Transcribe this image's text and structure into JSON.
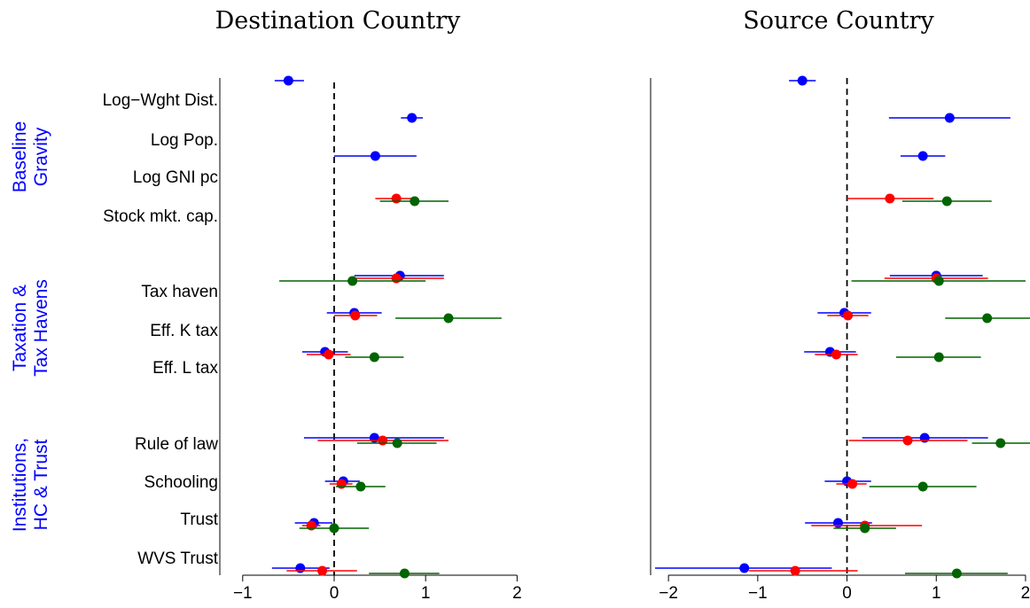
{
  "colors": {
    "blue": "#0000ff",
    "red": "#ff0000",
    "green": "#006400"
  },
  "row_labels": [
    "Log−Wght Dist.",
    "Log Pop.",
    "Log GNI pc",
    "Stock mkt. cap.",
    "Tax haven",
    "Eff. K tax",
    "Eff. L tax",
    "Rule of law",
    "Schooling",
    "Trust",
    "WVS Trust"
  ],
  "groups": [
    {
      "lines": [
        "Baseline",
        "Gravity"
      ]
    },
    {
      "lines": [
        "Taxation &",
        "Tax Havens"
      ]
    },
    {
      "lines": [
        "Institutions,",
        "HC & Trust"
      ]
    }
  ],
  "chart_data": [
    {
      "type": "scatter",
      "title": "Destination Country",
      "xlim": [
        -1.25,
        2.2
      ],
      "xticks": [
        -1,
        0,
        1,
        2
      ],
      "xtick_labels": [
        "−1",
        "0",
        "1",
        "2"
      ],
      "reference_line": 0,
      "grid": false,
      "points": [
        {
          "row": 0,
          "color": "blue",
          "est": -0.5,
          "lo": -0.65,
          "hi": -0.33
        },
        {
          "row": 1,
          "color": "blue",
          "est": 0.85,
          "lo": 0.73,
          "hi": 0.97
        },
        {
          "row": 2,
          "color": "blue",
          "est": 0.45,
          "lo": 0.0,
          "hi": 0.9
        },
        {
          "row": 3,
          "color": "red",
          "est": 0.68,
          "lo": 0.45,
          "hi": 0.92
        },
        {
          "row": 3,
          "color": "green",
          "est": 0.88,
          "lo": 0.5,
          "hi": 1.25
        },
        {
          "row": 4,
          "color": "blue",
          "est": 0.72,
          "lo": 0.22,
          "hi": 1.2
        },
        {
          "row": 4,
          "color": "red",
          "est": 0.68,
          "lo": 0.16,
          "hi": 1.2
        },
        {
          "row": 4,
          "color": "green",
          "est": 0.2,
          "lo": -0.6,
          "hi": 1.0
        },
        {
          "row": 5,
          "color": "blue",
          "est": 0.22,
          "lo": -0.08,
          "hi": 0.52
        },
        {
          "row": 5,
          "color": "red",
          "est": 0.23,
          "lo": 0.0,
          "hi": 0.47
        },
        {
          "row": 5,
          "color": "green",
          "est": 1.25,
          "lo": 0.67,
          "hi": 1.83
        },
        {
          "row": 6,
          "color": "blue",
          "est": -0.1,
          "lo": -0.35,
          "hi": 0.15
        },
        {
          "row": 6,
          "color": "red",
          "est": -0.06,
          "lo": -0.3,
          "hi": 0.18
        },
        {
          "row": 6,
          "color": "green",
          "est": 0.44,
          "lo": 0.12,
          "hi": 0.76
        },
        {
          "row": 7,
          "color": "blue",
          "est": 0.44,
          "lo": -0.33,
          "hi": 1.2
        },
        {
          "row": 7,
          "color": "red",
          "est": 0.53,
          "lo": -0.18,
          "hi": 1.25
        },
        {
          "row": 7,
          "color": "green",
          "est": 0.69,
          "lo": 0.25,
          "hi": 1.12
        },
        {
          "row": 8,
          "color": "blue",
          "est": 0.1,
          "lo": -0.1,
          "hi": 0.28
        },
        {
          "row": 8,
          "color": "red",
          "est": 0.08,
          "lo": -0.05,
          "hi": 0.2
        },
        {
          "row": 8,
          "color": "green",
          "est": 0.29,
          "lo": 0.02,
          "hi": 0.56
        },
        {
          "row": 9,
          "color": "blue",
          "est": -0.22,
          "lo": -0.43,
          "hi": -0.02
        },
        {
          "row": 9,
          "color": "red",
          "est": -0.25,
          "lo": -0.35,
          "hi": -0.15
        },
        {
          "row": 9,
          "color": "green",
          "est": 0.0,
          "lo": -0.38,
          "hi": 0.38
        },
        {
          "row": 10,
          "color": "blue",
          "est": -0.37,
          "lo": -0.68,
          "hi": -0.05
        },
        {
          "row": 10,
          "color": "red",
          "est": -0.13,
          "lo": -0.52,
          "hi": 0.25
        },
        {
          "row": 10,
          "color": "green",
          "est": 0.77,
          "lo": 0.38,
          "hi": 1.15
        }
      ]
    },
    {
      "type": "scatter",
      "title": "Source Country",
      "xlim": [
        -2.2,
        2.05
      ],
      "xticks": [
        -2,
        -1,
        0,
        1,
        2
      ],
      "xtick_labels": [
        "−2",
        "−1",
        "0",
        "1",
        "2"
      ],
      "reference_line": 0,
      "grid": false,
      "points": [
        {
          "row": 0,
          "color": "blue",
          "est": -0.5,
          "lo": -0.65,
          "hi": -0.35
        },
        {
          "row": 1,
          "color": "blue",
          "est": 1.15,
          "lo": 0.47,
          "hi": 1.83
        },
        {
          "row": 2,
          "color": "blue",
          "est": 0.85,
          "lo": 0.6,
          "hi": 1.1
        },
        {
          "row": 3,
          "color": "red",
          "est": 0.48,
          "lo": 0.0,
          "hi": 0.97
        },
        {
          "row": 3,
          "color": "green",
          "est": 1.12,
          "lo": 0.62,
          "hi": 1.62
        },
        {
          "row": 4,
          "color": "blue",
          "est": 1.0,
          "lo": 0.48,
          "hi": 1.52
        },
        {
          "row": 4,
          "color": "red",
          "est": 1.0,
          "lo": 0.42,
          "hi": 1.58
        },
        {
          "row": 4,
          "color": "green",
          "est": 1.03,
          "lo": 0.05,
          "hi": 2.0
        },
        {
          "row": 5,
          "color": "blue",
          "est": -0.03,
          "lo": -0.33,
          "hi": 0.27
        },
        {
          "row": 5,
          "color": "red",
          "est": 0.01,
          "lo": -0.22,
          "hi": 0.24
        },
        {
          "row": 5,
          "color": "green",
          "est": 1.57,
          "lo": 1.1,
          "hi": 2.05
        },
        {
          "row": 6,
          "color": "blue",
          "est": -0.19,
          "lo": -0.48,
          "hi": 0.1
        },
        {
          "row": 6,
          "color": "red",
          "est": -0.12,
          "lo": -0.36,
          "hi": 0.12
        },
        {
          "row": 6,
          "color": "green",
          "est": 1.03,
          "lo": 0.55,
          "hi": 1.5
        },
        {
          "row": 7,
          "color": "blue",
          "est": 0.87,
          "lo": 0.17,
          "hi": 1.58
        },
        {
          "row": 7,
          "color": "red",
          "est": 0.68,
          "lo": 0.02,
          "hi": 1.35
        },
        {
          "row": 7,
          "color": "green",
          "est": 1.72,
          "lo": 1.4,
          "hi": 2.05
        },
        {
          "row": 8,
          "color": "blue",
          "est": 0.0,
          "lo": -0.25,
          "hi": 0.27
        },
        {
          "row": 8,
          "color": "red",
          "est": 0.06,
          "lo": -0.12,
          "hi": 0.22
        },
        {
          "row": 8,
          "color": "green",
          "est": 0.85,
          "lo": 0.25,
          "hi": 1.45
        },
        {
          "row": 9,
          "color": "blue",
          "est": -0.1,
          "lo": -0.47,
          "hi": 0.28
        },
        {
          "row": 9,
          "color": "red",
          "est": 0.2,
          "lo": -0.4,
          "hi": 0.84
        },
        {
          "row": 9,
          "color": "green",
          "est": 0.2,
          "lo": -0.15,
          "hi": 0.55
        },
        {
          "row": 10,
          "color": "blue",
          "est": -1.15,
          "lo": -2.15,
          "hi": -0.17
        },
        {
          "row": 10,
          "color": "red",
          "est": -0.58,
          "lo": -1.1,
          "hi": 0.12
        },
        {
          "row": 10,
          "color": "green",
          "est": 1.23,
          "lo": 0.65,
          "hi": 1.8
        }
      ]
    }
  ]
}
